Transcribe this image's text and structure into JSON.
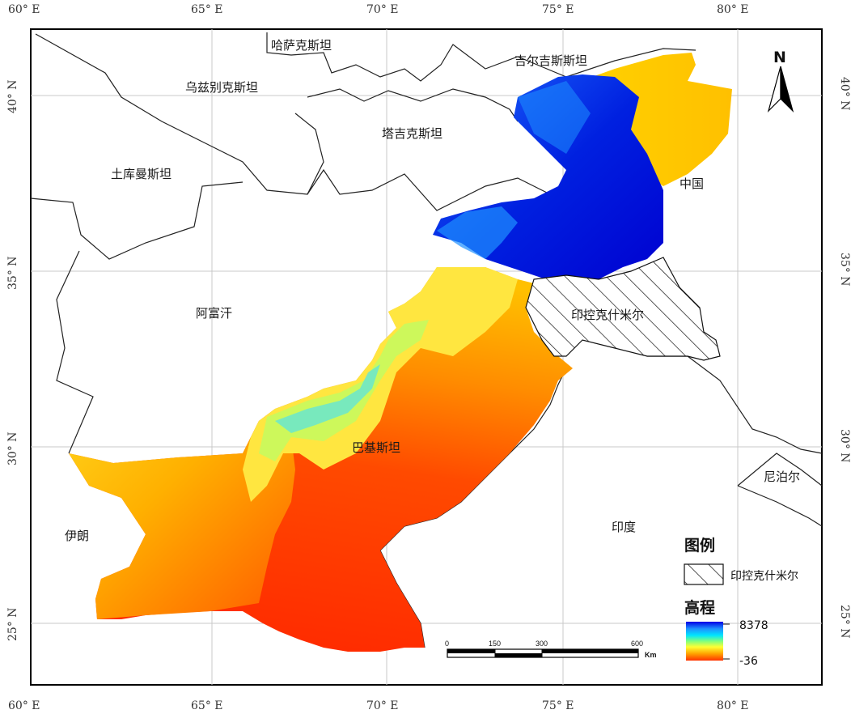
{
  "map": {
    "longitude_ticks": [
      "60° E",
      "65° E",
      "70° E",
      "75° E",
      "80° E"
    ],
    "latitude_ticks": [
      "40° N",
      "35° N",
      "30° N",
      "25° N"
    ],
    "countries": {
      "kazakhstan": "哈萨克斯坦",
      "kyrgyzstan": "吉尔吉斯斯坦",
      "uzbekistan": "乌兹别克斯坦",
      "tajikistan": "塔吉克斯坦",
      "turkmenistan": "土库曼斯坦",
      "china": "中国",
      "afghanistan": "阿富汗",
      "kashmir": "印控克什米尔",
      "pakistan": "巴基斯坦",
      "nepal": "尼泊尔",
      "iran": "伊朗",
      "india": "印度"
    },
    "north_arrow": "N"
  },
  "legend": {
    "title": "图例",
    "hatch_label": "印控克什米尔",
    "elevation_title": "高程",
    "elevation_max": "8378",
    "elevation_min": "-36",
    "colors": [
      "#0000e6",
      "#1e90ff",
      "#00e5ff",
      "#7fff7f",
      "#ffff33",
      "#ffa500",
      "#ff3300"
    ]
  },
  "scale_bar": {
    "ticks": [
      "0",
      "150",
      "300",
      "600"
    ],
    "unit": "Km"
  }
}
